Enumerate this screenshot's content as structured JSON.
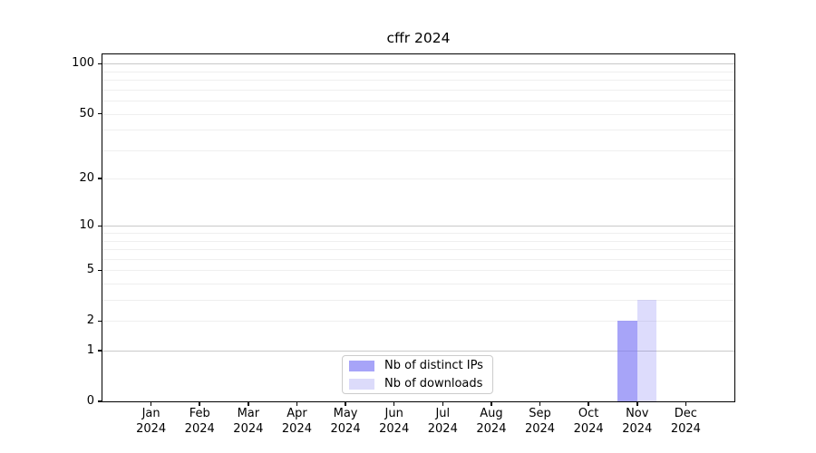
{
  "title": "cffr 2024",
  "chart_data": {
    "type": "bar",
    "title": "cffr 2024",
    "x_labels": [
      [
        "Jan",
        "2024"
      ],
      [
        "Feb",
        "2024"
      ],
      [
        "Mar",
        "2024"
      ],
      [
        "Apr",
        "2024"
      ],
      [
        "May",
        "2024"
      ],
      [
        "Jun",
        "2024"
      ],
      [
        "Jul",
        "2024"
      ],
      [
        "Aug",
        "2024"
      ],
      [
        "Sep",
        "2024"
      ],
      [
        "Oct",
        "2024"
      ],
      [
        "Nov",
        "2024"
      ],
      [
        "Dec",
        "2024"
      ]
    ],
    "series": [
      {
        "name": "Nb of distinct IPs",
        "bar_color": "rgba(120,115,245,0.65)",
        "legend_color": "#a7a4f8",
        "values": [
          0,
          0,
          0,
          0,
          0,
          0,
          0,
          0,
          0,
          0,
          2,
          0
        ]
      },
      {
        "name": "Nb of downloads",
        "bar_color": "rgba(120,115,245,0.25)",
        "legend_color": "#dcdbfa",
        "values": [
          0,
          0,
          0,
          0,
          0,
          0,
          0,
          0,
          0,
          0,
          3,
          0
        ]
      }
    ],
    "y_axis": {
      "scale": "log1p",
      "ticks": [
        0,
        1,
        2,
        5,
        10,
        20,
        50,
        100
      ],
      "major_gridlines": [
        1,
        10,
        100
      ],
      "minor_gridlines": [
        2,
        3,
        4,
        5,
        6,
        7,
        8,
        9,
        20,
        30,
        40,
        50,
        60,
        70,
        80,
        90
      ],
      "ylim": [
        0,
        100
      ]
    },
    "legend_position": "bottom-center",
    "colors": {
      "major_grid": "#c9c9c9",
      "minor_grid": "#efefef",
      "axis": "#000000",
      "background": "#ffffff"
    }
  }
}
